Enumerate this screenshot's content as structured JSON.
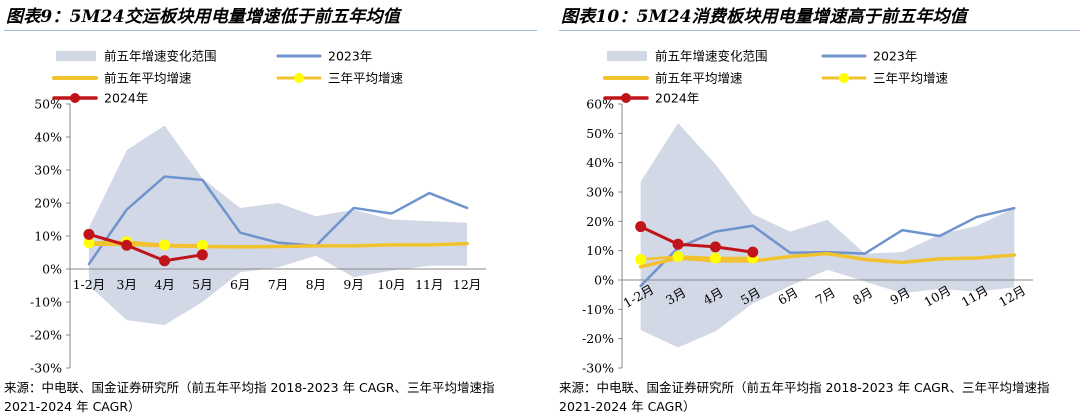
{
  "chart_data": [
    {
      "type": "line",
      "title": "图表9：5M24交运板块用电量增速低于前五年均值",
      "categories": [
        "1-2月",
        "3月",
        "4月",
        "5月",
        "6月",
        "7月",
        "8月",
        "9月",
        "10月",
        "11月",
        "12月"
      ],
      "ylim": [
        -0.3,
        0.5
      ],
      "yticks": [
        "50%",
        "40%",
        "30%",
        "20%",
        "10%",
        "0%",
        "-10%",
        "-20%",
        "-30%"
      ],
      "grid": false,
      "legend_position": "top",
      "source": "来源：中电联、国金证券研究所（前五年平均指 2018-2023 年 CAGR、三年平均增速指 2021-2024 年 CAGR）",
      "range": {
        "name": "前五年增速变化范围",
        "color": "#d3d8e6",
        "lower": [
          -0.05,
          -0.155,
          -0.17,
          -0.1,
          -0.01,
          0.005,
          0.04,
          -0.025,
          -0.005,
          0.01,
          0.01
        ],
        "upper": [
          0.125,
          0.36,
          0.435,
          0.275,
          0.185,
          0.2,
          0.16,
          0.18,
          0.15,
          0.145,
          0.14
        ]
      },
      "series": [
        {
          "name": "2023年",
          "color": "#6f93cd",
          "width": 2.5,
          "marker": false,
          "values": [
            0.015,
            0.18,
            0.28,
            0.27,
            0.11,
            0.08,
            0.07,
            0.185,
            0.168,
            0.23,
            0.185
          ]
        },
        {
          "name": "前五年平均增速",
          "color": "#f2c12e",
          "width": 3.5,
          "marker": false,
          "values": [
            0.075,
            0.075,
            0.07,
            0.068,
            0.067,
            0.068,
            0.07,
            0.07,
            0.073,
            0.073,
            0.077
          ]
        },
        {
          "name": "三年平均增速",
          "color": "#f2c12e",
          "width": 2.5,
          "marker": true,
          "marker_color": "#ffff00",
          "values": [
            0.08,
            0.083,
            0.073,
            0.072,
            null,
            null,
            null,
            null,
            null,
            null,
            null
          ]
        },
        {
          "name": "2024年",
          "color": "#c0141b",
          "width": 3,
          "marker": true,
          "marker_color": "#c0141b",
          "values": [
            0.105,
            0.072,
            0.025,
            0.043,
            null,
            null,
            null,
            null,
            null,
            null,
            null
          ]
        }
      ]
    },
    {
      "type": "line",
      "title": "图表10：5M24消费板块用电量增速高于前五年均值",
      "categories": [
        "1-2月",
        "3月",
        "4月",
        "5月",
        "6月",
        "7月",
        "8月",
        "9月",
        "10月",
        "11月",
        "12月"
      ],
      "ylim": [
        -0.3,
        0.6
      ],
      "yticks": [
        "60%",
        "50%",
        "40%",
        "30%",
        "20%",
        "10%",
        "0%",
        "-10%",
        "-20%",
        "-30%"
      ],
      "grid": false,
      "legend_position": "top",
      "source": "来源：中电联、国金证券研究所（前五年平均指 2018-2023 年 CAGR、三年平均增速指 2021-2024 年 CAGR）",
      "range": {
        "name": "前五年增速变化范围",
        "color": "#d3d8e6",
        "lower": [
          -0.17,
          -0.23,
          -0.175,
          -0.08,
          -0.02,
          0.035,
          -0.005,
          -0.045,
          -0.03,
          -0.04,
          -0.025
        ],
        "upper": [
          0.335,
          0.535,
          0.395,
          0.225,
          0.165,
          0.205,
          0.09,
          0.095,
          0.155,
          0.185,
          0.245
        ]
      },
      "series": [
        {
          "name": "2023年",
          "color": "#6f93cd",
          "width": 2.5,
          "marker": false,
          "values": [
            -0.02,
            0.11,
            0.165,
            0.185,
            0.093,
            0.095,
            0.09,
            0.17,
            0.15,
            0.215,
            0.245
          ]
        },
        {
          "name": "前五年平均增速",
          "color": "#f2c12e",
          "width": 3.5,
          "marker": false,
          "values": [
            0.045,
            0.075,
            0.065,
            0.065,
            0.08,
            0.09,
            0.07,
            0.06,
            0.072,
            0.075,
            0.085
          ]
        },
        {
          "name": "三年平均增速",
          "color": "#f2c12e",
          "width": 2.5,
          "marker": true,
          "marker_color": "#ffff00",
          "values": [
            0.07,
            0.08,
            0.075,
            0.075,
            null,
            null,
            null,
            null,
            null,
            null,
            null
          ]
        },
        {
          "name": "2024年",
          "color": "#c0141b",
          "width": 3,
          "marker": true,
          "marker_color": "#c0141b",
          "values": [
            0.182,
            0.122,
            0.113,
            0.095,
            null,
            null,
            null,
            null,
            null,
            null,
            null
          ]
        }
      ]
    }
  ]
}
